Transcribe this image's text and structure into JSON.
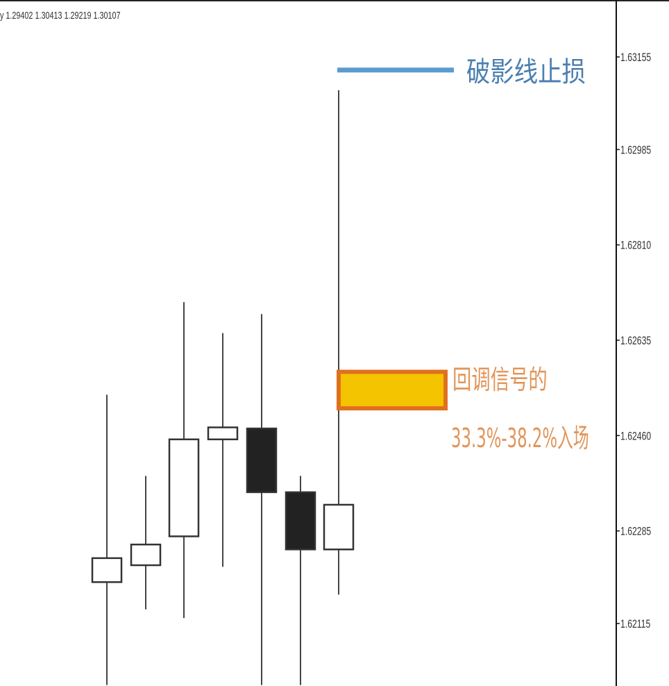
{
  "chart_data": {
    "type": "candlestick",
    "ohlc_header": "y 1.29402 1.30413 1.29219 1.30107",
    "y_axis": {
      "ticks": [
        1.63155,
        1.62985,
        1.6281,
        1.62635,
        1.6246,
        1.62285,
        1.62115
      ],
      "tick_labels": [
        "1.63155",
        "1.62985",
        "1.62810",
        "1.62635",
        "1.62460",
        "1.62285",
        "1.62115"
      ],
      "ylim": [
        1.62002,
        1.63276
      ]
    },
    "candles": [
      {
        "open": 1.62191,
        "high": 1.62535,
        "low": 1.62002,
        "close": 1.62235,
        "color": "white"
      },
      {
        "open": 1.62222,
        "high": 1.62386,
        "low": 1.62141,
        "close": 1.6226,
        "color": "white"
      },
      {
        "open": 1.62275,
        "high": 1.62705,
        "low": 1.62125,
        "close": 1.62453,
        "color": "white"
      },
      {
        "open": 1.62453,
        "high": 1.62648,
        "low": 1.62219,
        "close": 1.62475,
        "color": "white"
      },
      {
        "open": 1.62473,
        "high": 1.62683,
        "low": 1.62002,
        "close": 1.62356,
        "color": "black"
      },
      {
        "open": 1.62356,
        "high": 1.62386,
        "low": 1.62002,
        "close": 1.62251,
        "color": "black"
      },
      {
        "open": 1.62251,
        "high": 1.63094,
        "low": 1.62168,
        "close": 1.62333,
        "color": "white"
      }
    ],
    "annotations": [
      {
        "text": "破影线止损",
        "color": "#4a7fb0",
        "level": 1.63131
      },
      {
        "text": "回调信号的",
        "color": "#e2955a"
      },
      {
        "text": "33.3%-38.2%入场",
        "color": "#e2955a",
        "zone": [
          1.6251,
          1.62577
        ],
        "zone_color": "#f5c400",
        "zone_border": "#e0701e"
      }
    ]
  }
}
